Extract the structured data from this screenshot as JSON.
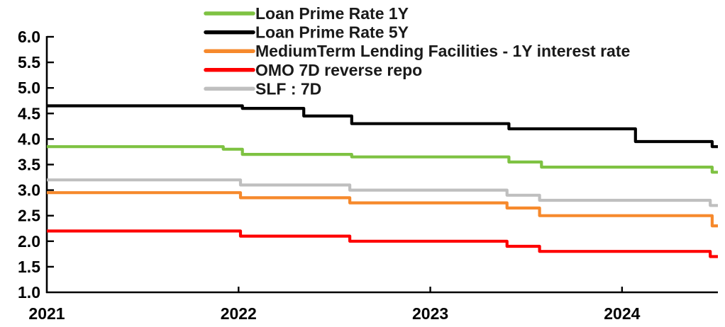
{
  "chart_data": {
    "type": "line",
    "subtype": "step-after",
    "title": "",
    "xlabel": "",
    "ylabel": "",
    "grid": false,
    "legend_position": "top-left-inside",
    "axis_color": "#000000",
    "xlim": [
      2021.0,
      2024.5
    ],
    "ylim": [
      1.0,
      6.0
    ],
    "x_ticks": [
      2021,
      2022,
      2023,
      2024
    ],
    "x_tick_labels": [
      "2021",
      "2022",
      "2023",
      "2024"
    ],
    "y_ticks": [
      6.0,
      5.5,
      5.0,
      4.5,
      4.0,
      3.5,
      3.0,
      2.5,
      2.0,
      1.5,
      1.0
    ],
    "y_tick_labels": [
      "6.0",
      "5.5",
      "5.0",
      "4.5",
      "4.0",
      "3.5",
      "3.0",
      "2.5",
      "2.0",
      "1.5",
      "1.0"
    ],
    "series": [
      {
        "name": "Loan Prime Rate 1Y",
        "color": "#7EC242",
        "points": [
          [
            2021.0,
            3.85
          ],
          [
            2021.92,
            3.8
          ],
          [
            2022.02,
            3.7
          ],
          [
            2022.59,
            3.65
          ],
          [
            2023.41,
            3.55
          ],
          [
            2023.58,
            3.45
          ],
          [
            2024.47,
            3.35
          ],
          [
            2024.5,
            3.35
          ]
        ]
      },
      {
        "name": "Loan Prime Rate 5Y",
        "color": "#000000",
        "points": [
          [
            2021.0,
            4.65
          ],
          [
            2022.02,
            4.6
          ],
          [
            2022.34,
            4.45
          ],
          [
            2022.59,
            4.3
          ],
          [
            2023.41,
            4.2
          ],
          [
            2024.07,
            3.95
          ],
          [
            2024.47,
            3.85
          ],
          [
            2024.5,
            3.85
          ]
        ]
      },
      {
        "name": "MediumTerm Lending Facilities - 1Y interest rate",
        "color": "#F6892C",
        "points": [
          [
            2021.0,
            2.95
          ],
          [
            2022.01,
            2.85
          ],
          [
            2022.58,
            2.75
          ],
          [
            2023.4,
            2.65
          ],
          [
            2023.57,
            2.5
          ],
          [
            2024.47,
            2.3
          ],
          [
            2024.5,
            2.3
          ]
        ]
      },
      {
        "name": "OMO 7D reverse repo",
        "color": "#FE0000",
        "points": [
          [
            2021.0,
            2.2
          ],
          [
            2022.01,
            2.1
          ],
          [
            2022.58,
            2.0
          ],
          [
            2023.4,
            1.9
          ],
          [
            2023.57,
            1.8
          ],
          [
            2024.46,
            1.7
          ],
          [
            2024.5,
            1.7
          ]
        ]
      },
      {
        "name": "SLF : 7D",
        "color": "#BFBFBF",
        "points": [
          [
            2021.0,
            3.2
          ],
          [
            2022.01,
            3.1
          ],
          [
            2022.58,
            3.0
          ],
          [
            2023.4,
            2.9
          ],
          [
            2023.57,
            2.8
          ],
          [
            2024.46,
            2.7
          ],
          [
            2024.5,
            2.7
          ]
        ]
      }
    ]
  }
}
